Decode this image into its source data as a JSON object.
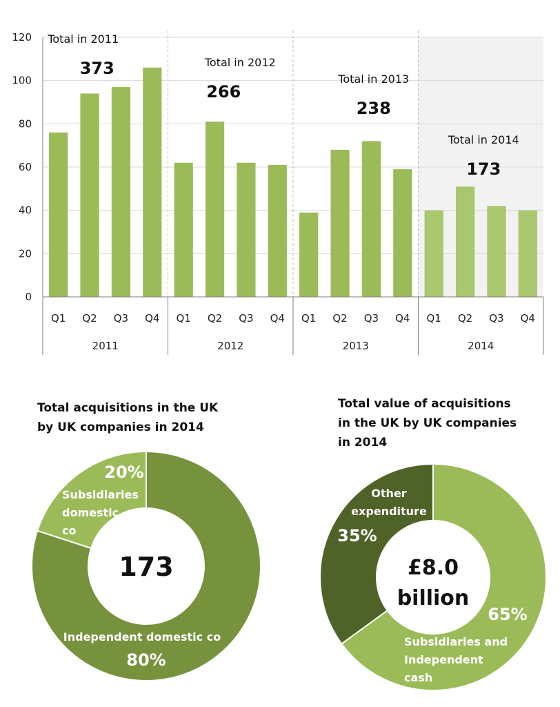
{
  "chart_data": [
    {
      "type": "bar",
      "groups": [
        "2011",
        "2012",
        "2013",
        "2014"
      ],
      "categories": [
        "Q1",
        "Q2",
        "Q3",
        "Q4",
        "Q1",
        "Q2",
        "Q3",
        "Q4",
        "Q1",
        "Q2",
        "Q3",
        "Q4",
        "Q1",
        "Q2",
        "Q3",
        "Q4"
      ],
      "values": [
        76,
        94,
        97,
        106,
        62,
        81,
        62,
        61,
        39,
        68,
        72,
        59,
        40,
        51,
        42,
        40
      ],
      "ylim": [
        0,
        120
      ],
      "yticks": [
        "0",
        "20",
        "40",
        "60",
        "80",
        "100",
        "120"
      ],
      "grid": true,
      "highlight_group": "2014",
      "annotations": [
        {
          "label": "Total  in 2011",
          "value": "373"
        },
        {
          "label": "Total  in 2012",
          "value": "266"
        },
        {
          "label": "Total  in 2013",
          "value": "238"
        },
        {
          "label": "Total  in 2014",
          "value": "173"
        }
      ],
      "colors": {
        "bar": "#9bbb59",
        "bar_highlight": "#a9c76f",
        "highlight_bg": "#f2f2f2",
        "grid": "#d9d9d9"
      }
    },
    {
      "type": "pie",
      "title_lines": [
        "Total acquisitions in the UK",
        "by UK companies in 2014"
      ],
      "center_label": "173",
      "slices": [
        {
          "label_lines": [
            "Independent domestic co"
          ],
          "percent_text": "80%",
          "value": 80,
          "color": "#76923c"
        },
        {
          "label_lines": [
            "Subsidiaries",
            "domestic",
            "co"
          ],
          "percent_text": "20%",
          "value": 20,
          "color": "#9bbb59"
        }
      ]
    },
    {
      "type": "pie",
      "title_lines": [
        "Total value of acquisitions",
        "in the UK by UK companies",
        "in 2014"
      ],
      "center_label_lines": [
        "£8.0",
        "billion"
      ],
      "slices": [
        {
          "label_lines": [
            "Subsidiaries and",
            "Independent",
            "cash"
          ],
          "percent_text": "65%",
          "value": 65,
          "color": "#9bbb59"
        },
        {
          "label_lines": [
            "Other",
            "expenditure"
          ],
          "percent_text": "35%",
          "value": 35,
          "color": "#4f6228"
        }
      ]
    }
  ]
}
